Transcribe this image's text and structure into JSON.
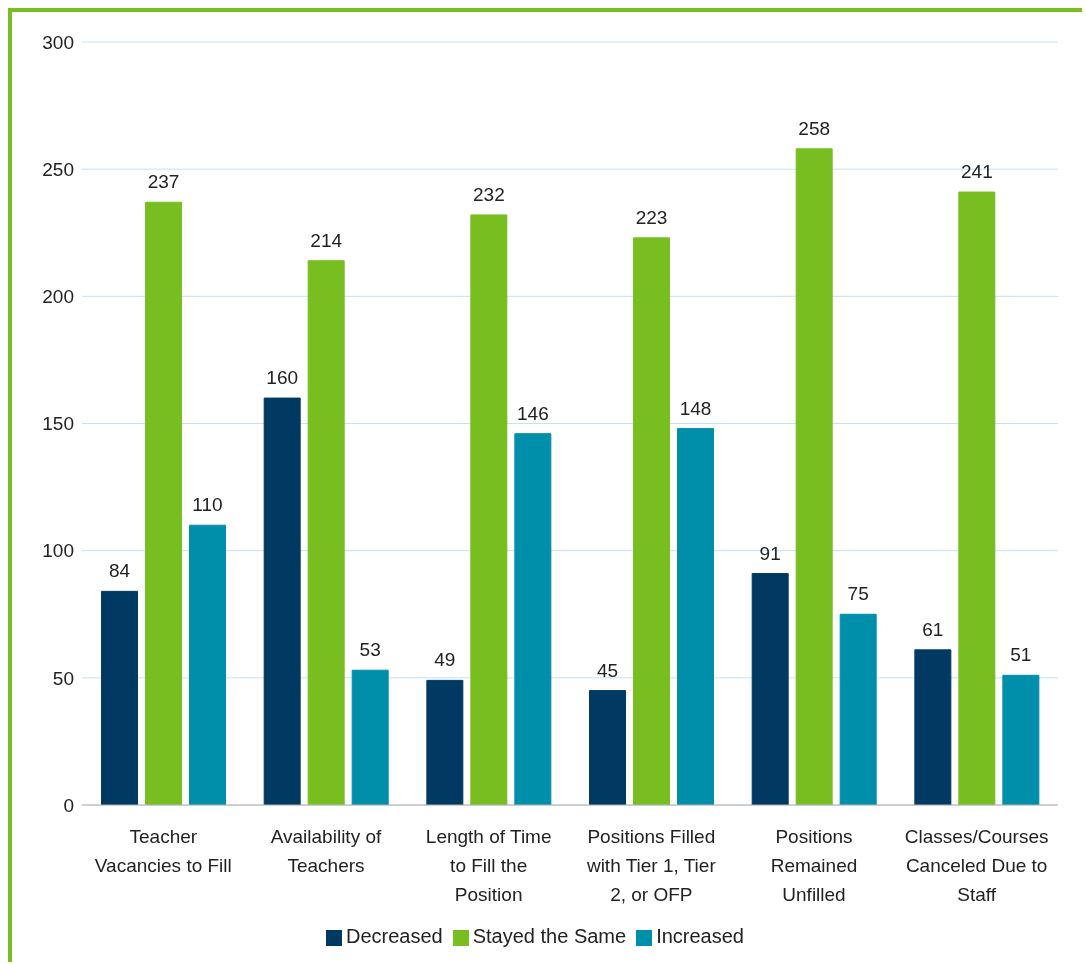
{
  "chart_data": {
    "type": "bar",
    "categories": [
      "Teacher Vacancies to Fill",
      "Availability of Teachers",
      "Length of Time to Fill the Position",
      "Positions Filled with Tier 1, Tier 2, or OFP",
      "Positions Remained Unfilled",
      "Classes/Courses Canceled Due to Staff"
    ],
    "series": [
      {
        "name": "Decreased",
        "color": "#003a63",
        "values": [
          84,
          160,
          49,
          45,
          91,
          61
        ]
      },
      {
        "name": "Stayed the Same",
        "color": "#78be21",
        "values": [
          237,
          214,
          232,
          223,
          258,
          241
        ]
      },
      {
        "name": "Increased",
        "color": "#008fab",
        "values": [
          110,
          53,
          146,
          148,
          75,
          51
        ]
      }
    ],
    "ylim": [
      0,
      300
    ],
    "yticks": [
      0,
      50,
      100,
      150,
      200,
      250,
      300
    ],
    "grid": "y",
    "legend": "bottom",
    "data_labels": true
  }
}
